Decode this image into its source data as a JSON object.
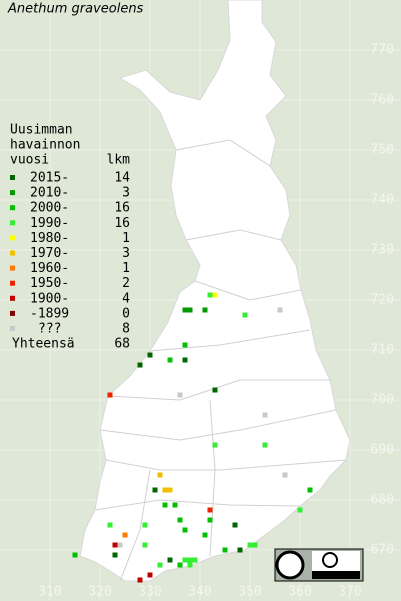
{
  "title": "Anethum graveolens",
  "legend": {
    "heading": [
      "Uusimman",
      "havainnon",
      "vuosi"
    ],
    "count_heading": "lkm",
    "entries": [
      {
        "label": "2015-",
        "count": 14,
        "color": "#006400",
        "points": [
          [
            330,
            709
          ],
          [
            328,
            707
          ],
          [
            337,
            708
          ],
          [
            343,
            702
          ],
          [
            331,
            682
          ],
          [
            347,
            675
          ],
          [
            348,
            670
          ],
          [
            323,
            669
          ],
          [
            334,
            668
          ]
        ]
      },
      {
        "label": "2010-",
        "count": 3,
        "color": "#009a00",
        "points": [
          [
            337,
            718
          ],
          [
            338,
            718
          ],
          [
            341,
            718
          ]
        ]
      },
      {
        "label": "2000-",
        "count": 16,
        "color": "#00c000",
        "points": [
          [
            337,
            711
          ],
          [
            334,
            708
          ],
          [
            333,
            679
          ],
          [
            335,
            679
          ],
          [
            336,
            676
          ],
          [
            337,
            674
          ],
          [
            342,
            676
          ],
          [
            341,
            673
          ],
          [
            345,
            670
          ],
          [
            315,
            669
          ],
          [
            336,
            667
          ],
          [
            362,
            682
          ]
        ]
      },
      {
        "label": "1990-",
        "count": 16,
        "color": "#33ee33",
        "points": [
          [
            342,
            721
          ],
          [
            349,
            717
          ],
          [
            343,
            691
          ],
          [
            353,
            691
          ],
          [
            360,
            678
          ],
          [
            322,
            675
          ],
          [
            329,
            675
          ],
          [
            329,
            671
          ],
          [
            350,
            671
          ],
          [
            351,
            671
          ],
          [
            337,
            668
          ],
          [
            338,
            668
          ],
          [
            339,
            668
          ],
          [
            338,
            667
          ],
          [
            332,
            667
          ]
        ]
      },
      {
        "label": "1980-",
        "count": 1,
        "color": "#ffff00",
        "points": [
          [
            343,
            721
          ]
        ]
      },
      {
        "label": "1970-",
        "count": 3,
        "color": "#f0c000",
        "points": [
          [
            332,
            685
          ],
          [
            333,
            682
          ],
          [
            334,
            682
          ]
        ]
      },
      {
        "label": "1960-",
        "count": 1,
        "color": "#ff7a00",
        "points": [
          [
            325,
            673
          ]
        ]
      },
      {
        "label": "1950-",
        "count": 2,
        "color": "#ee2200",
        "points": [
          [
            322,
            701
          ],
          [
            342,
            678
          ]
        ]
      },
      {
        "label": "1900-",
        "count": 4,
        "color": "#c00000",
        "points": [
          [
            323,
            671
          ],
          [
            330,
            665
          ],
          [
            328,
            664
          ]
        ]
      },
      {
        "label": "-1899",
        "count": 0,
        "color": "#800000",
        "points": []
      },
      {
        "label": "???",
        "count": 8,
        "color": "#c8c8c8",
        "points": [
          [
            356,
            718
          ],
          [
            336,
            701
          ],
          [
            353,
            697
          ],
          [
            357,
            685
          ],
          [
            324,
            671
          ]
        ]
      }
    ],
    "total_label": "Yhteensä",
    "total": 68
  },
  "axes": {
    "xlim": [
      300,
      380
    ],
    "ylim": [
      660,
      780
    ],
    "xticks": [
      310,
      320,
      330,
      340,
      350,
      360,
      370
    ],
    "yticks": [
      670,
      680,
      690,
      700,
      710,
      720,
      730,
      740,
      750,
      760,
      770
    ]
  }
}
